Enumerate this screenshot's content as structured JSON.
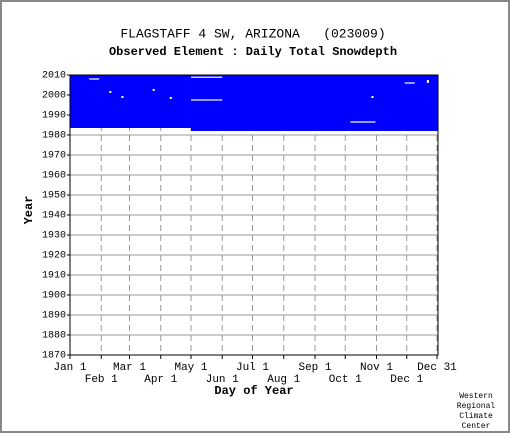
{
  "chart_data": {
    "type": "coverage",
    "title": "FLAGSTAFF 4 SW, ARIZONA   (023009)",
    "subtitle": "Observed Element : Daily Total Snowdepth",
    "xlabel": "Day of Year",
    "ylabel": "Year",
    "credit": [
      "Western",
      "Regional",
      "Climate",
      "Center"
    ],
    "xlim": [
      1,
      366
    ],
    "ylim": [
      1870,
      2010
    ],
    "xticks": [
      {
        "value": 1,
        "label": "Jan 1"
      },
      {
        "value": 32,
        "label": "Feb 1"
      },
      {
        "value": 60,
        "label": "Mar 1"
      },
      {
        "value": 91,
        "label": "Apr 1"
      },
      {
        "value": 121,
        "label": "May 1"
      },
      {
        "value": 152,
        "label": "Jun 1"
      },
      {
        "value": 182,
        "label": "Jul 1"
      },
      {
        "value": 213,
        "label": "Aug 1"
      },
      {
        "value": 244,
        "label": "Sep 1"
      },
      {
        "value": 274,
        "label": "Oct 1"
      },
      {
        "value": 305,
        "label": "Nov 1"
      },
      {
        "value": 335,
        "label": "Dec 1"
      },
      {
        "value": 365,
        "label": "Dec 31"
      }
    ],
    "yticks": [
      1870,
      1880,
      1890,
      1900,
      1910,
      1920,
      1930,
      1940,
      1950,
      1960,
      1970,
      1980,
      1990,
      2000,
      2010
    ],
    "grid": true,
    "color": "#0000ff",
    "gap_color": "#ffffff",
    "blocks": [
      {
        "days": [
          1,
          121
        ],
        "years": [
          1983.5,
          2010
        ]
      },
      {
        "days": [
          121,
          366
        ],
        "years": [
          1982,
          2010
        ]
      }
    ],
    "gaps": [
      {
        "days": [
          121,
          152
        ],
        "years": [
          2008.6,
          2009.2
        ]
      },
      {
        "days": [
          121,
          152
        ],
        "years": [
          1997.2,
          1997.8
        ]
      },
      {
        "days": [
          279,
          304
        ],
        "years": [
          1986.2,
          1986.8
        ]
      },
      {
        "days": [
          333,
          343
        ],
        "years": [
          2005.7,
          2006.3
        ]
      },
      {
        "days": [
          20,
          30
        ],
        "years": [
          2007.7,
          2008.3
        ]
      },
      {
        "days": [
          40,
          42
        ],
        "years": [
          2001,
          2002
        ]
      },
      {
        "days": [
          52,
          54
        ],
        "years": [
          1998.5,
          1999.5
        ]
      },
      {
        "days": [
          83,
          85
        ],
        "years": [
          2002,
          2003
        ]
      },
      {
        "days": [
          100,
          102
        ],
        "years": [
          1998,
          1999
        ]
      },
      {
        "days": [
          300,
          302
        ],
        "years": [
          1998.5,
          1999.5
        ]
      },
      {
        "days": [
          355,
          357
        ],
        "years": [
          2006,
          2007.5
        ]
      }
    ]
  }
}
